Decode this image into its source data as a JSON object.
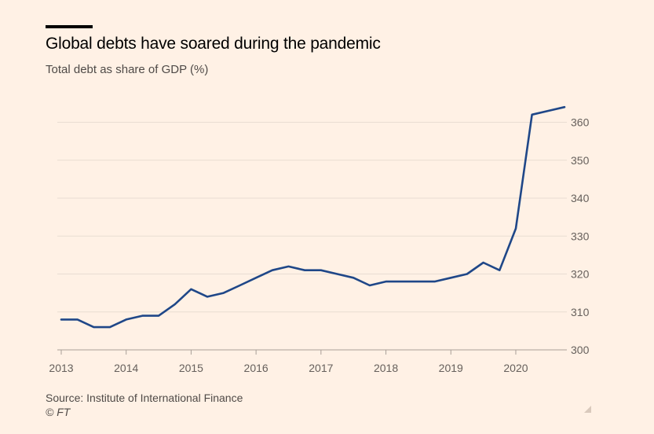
{
  "header": {
    "title": "Global debts have soared during the pandemic",
    "subtitle": "Total debt as share of GDP (%)"
  },
  "footer": {
    "source": "Source: Institute of International Finance",
    "credit": "© FT"
  },
  "colors": {
    "background": "#fff1e5",
    "line": "#1f4788",
    "grid": "#e9ddd2",
    "axis": "#a89f98",
    "text": "#66605c"
  },
  "chart_data": {
    "type": "line",
    "title": "Global debts have soared during the pandemic",
    "ylabel": "Total debt as share of GDP (%)",
    "xlabel": "",
    "ylim": [
      300,
      365
    ],
    "xlim": [
      2013.0,
      2020.75
    ],
    "y_ticks": [
      300,
      310,
      320,
      330,
      340,
      350,
      360
    ],
    "x_ticks": [
      2013,
      2014,
      2015,
      2016,
      2017,
      2018,
      2019,
      2020
    ],
    "grid": true,
    "y_axis_position": "right",
    "series": [
      {
        "name": "Total debt as share of GDP (%)",
        "x": [
          2013.0,
          2013.25,
          2013.5,
          2013.75,
          2014.0,
          2014.25,
          2014.5,
          2014.75,
          2015.0,
          2015.25,
          2015.5,
          2015.75,
          2016.0,
          2016.25,
          2016.5,
          2016.75,
          2017.0,
          2017.25,
          2017.5,
          2017.75,
          2018.0,
          2018.25,
          2018.5,
          2018.75,
          2019.0,
          2019.25,
          2019.5,
          2019.75,
          2020.0,
          2020.25,
          2020.5,
          2020.75
        ],
        "values": [
          308,
          308,
          306,
          306,
          308,
          309,
          309,
          312,
          316,
          314,
          315,
          317,
          319,
          321,
          322,
          321,
          321,
          320,
          319,
          317,
          318,
          318,
          318,
          318,
          319,
          320,
          323,
          321,
          332,
          362,
          363,
          364
        ]
      }
    ]
  }
}
